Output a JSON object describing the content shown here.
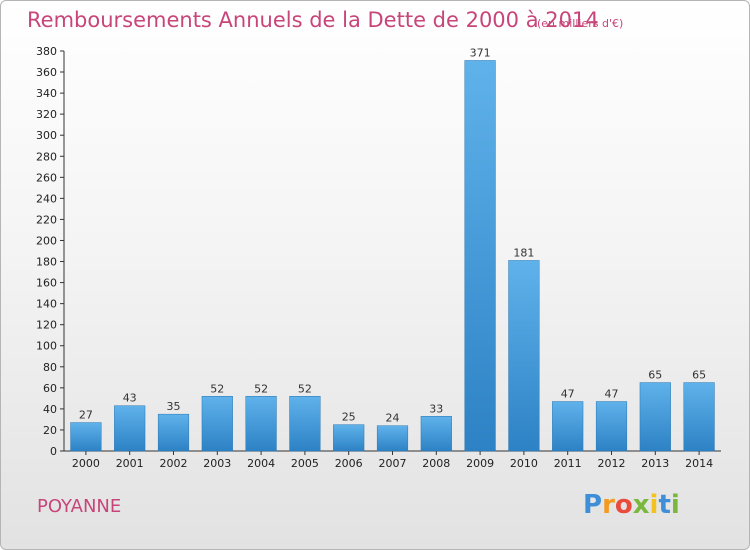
{
  "chart_data": {
    "type": "bar",
    "title": "Remboursements Annuels de la Dette de 2000 à 2014",
    "unit": "(en milliers d'€)",
    "categories": [
      "2000",
      "2001",
      "2002",
      "2003",
      "2004",
      "2005",
      "2006",
      "2007",
      "2008",
      "2009",
      "2010",
      "2011",
      "2012",
      "2013",
      "2014"
    ],
    "values": [
      27,
      43,
      35,
      52,
      52,
      52,
      25,
      24,
      33,
      371,
      181,
      47,
      47,
      65,
      65
    ],
    "ylim": [
      0,
      380
    ],
    "yticks": [
      0,
      20,
      40,
      60,
      80,
      100,
      120,
      140,
      160,
      180,
      200,
      220,
      240,
      260,
      280,
      300,
      320,
      340,
      360,
      380
    ],
    "grid": false,
    "bar_color": "#3a9ad9"
  },
  "footer": {
    "city": "POYANNE",
    "logo_letters": [
      "P",
      "r",
      "o",
      "x",
      "i",
      "t",
      "i"
    ],
    "logo_colors": [
      "#3f8fd8",
      "#f39a1f",
      "#e94b3c",
      "#7ab83d",
      "#f3c21f",
      "#3f8fd8",
      "#7ab83d"
    ]
  }
}
